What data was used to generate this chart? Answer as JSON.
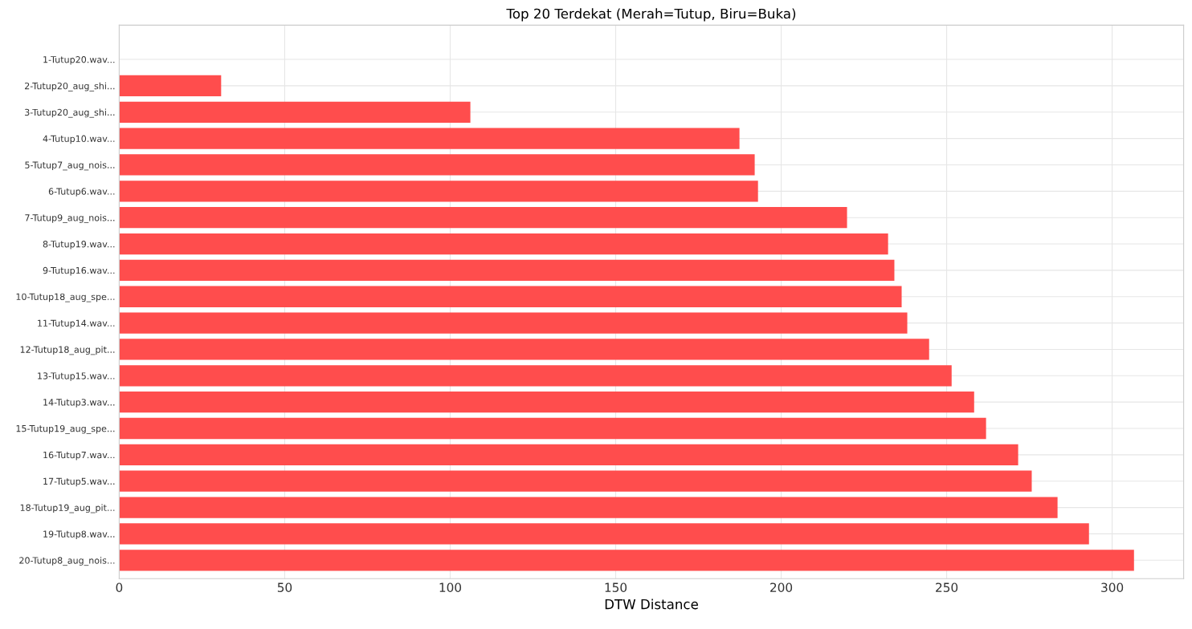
{
  "chart_data": {
    "type": "bar",
    "orientation": "horizontal",
    "title": "Top 20 Terdekat (Merah=Tutup, Biru=Buka)",
    "xlabel": "DTW Distance",
    "categories": [
      "1-Tutup20.wav...",
      "2-Tutup20_aug_shi...",
      "3-Tutup20_aug_shi...",
      "4-Tutup10.wav...",
      "5-Tutup7_aug_nois...",
      "6-Tutup6.wav...",
      "7-Tutup9_aug_nois...",
      "8-Tutup19.wav...",
      "9-Tutup16.wav...",
      "10-Tutup18_aug_spe...",
      "11-Tutup14.wav...",
      "12-Tutup18_aug_pit...",
      "13-Tutup15.wav...",
      "14-Tutup3.wav...",
      "15-Tutup19_aug_spe...",
      "16-Tutup7.wav...",
      "17-Tutup5.wav...",
      "18-Tutup19_aug_pit...",
      "19-Tutup8.wav...",
      "20-Tutup8_aug_nois..."
    ],
    "values": [
      0,
      30.8,
      106.1,
      187.4,
      192.0,
      193.0,
      219.9,
      232.3,
      234.2,
      236.4,
      238.1,
      244.7,
      251.5,
      258.3,
      261.9,
      271.6,
      275.7,
      283.5,
      293.0,
      306.6
    ],
    "color": "#ff4d4d",
    "xlim": [
      0,
      321.6
    ],
    "xticks": [
      0,
      50,
      100,
      150,
      200,
      250,
      300
    ],
    "grid": true
  }
}
